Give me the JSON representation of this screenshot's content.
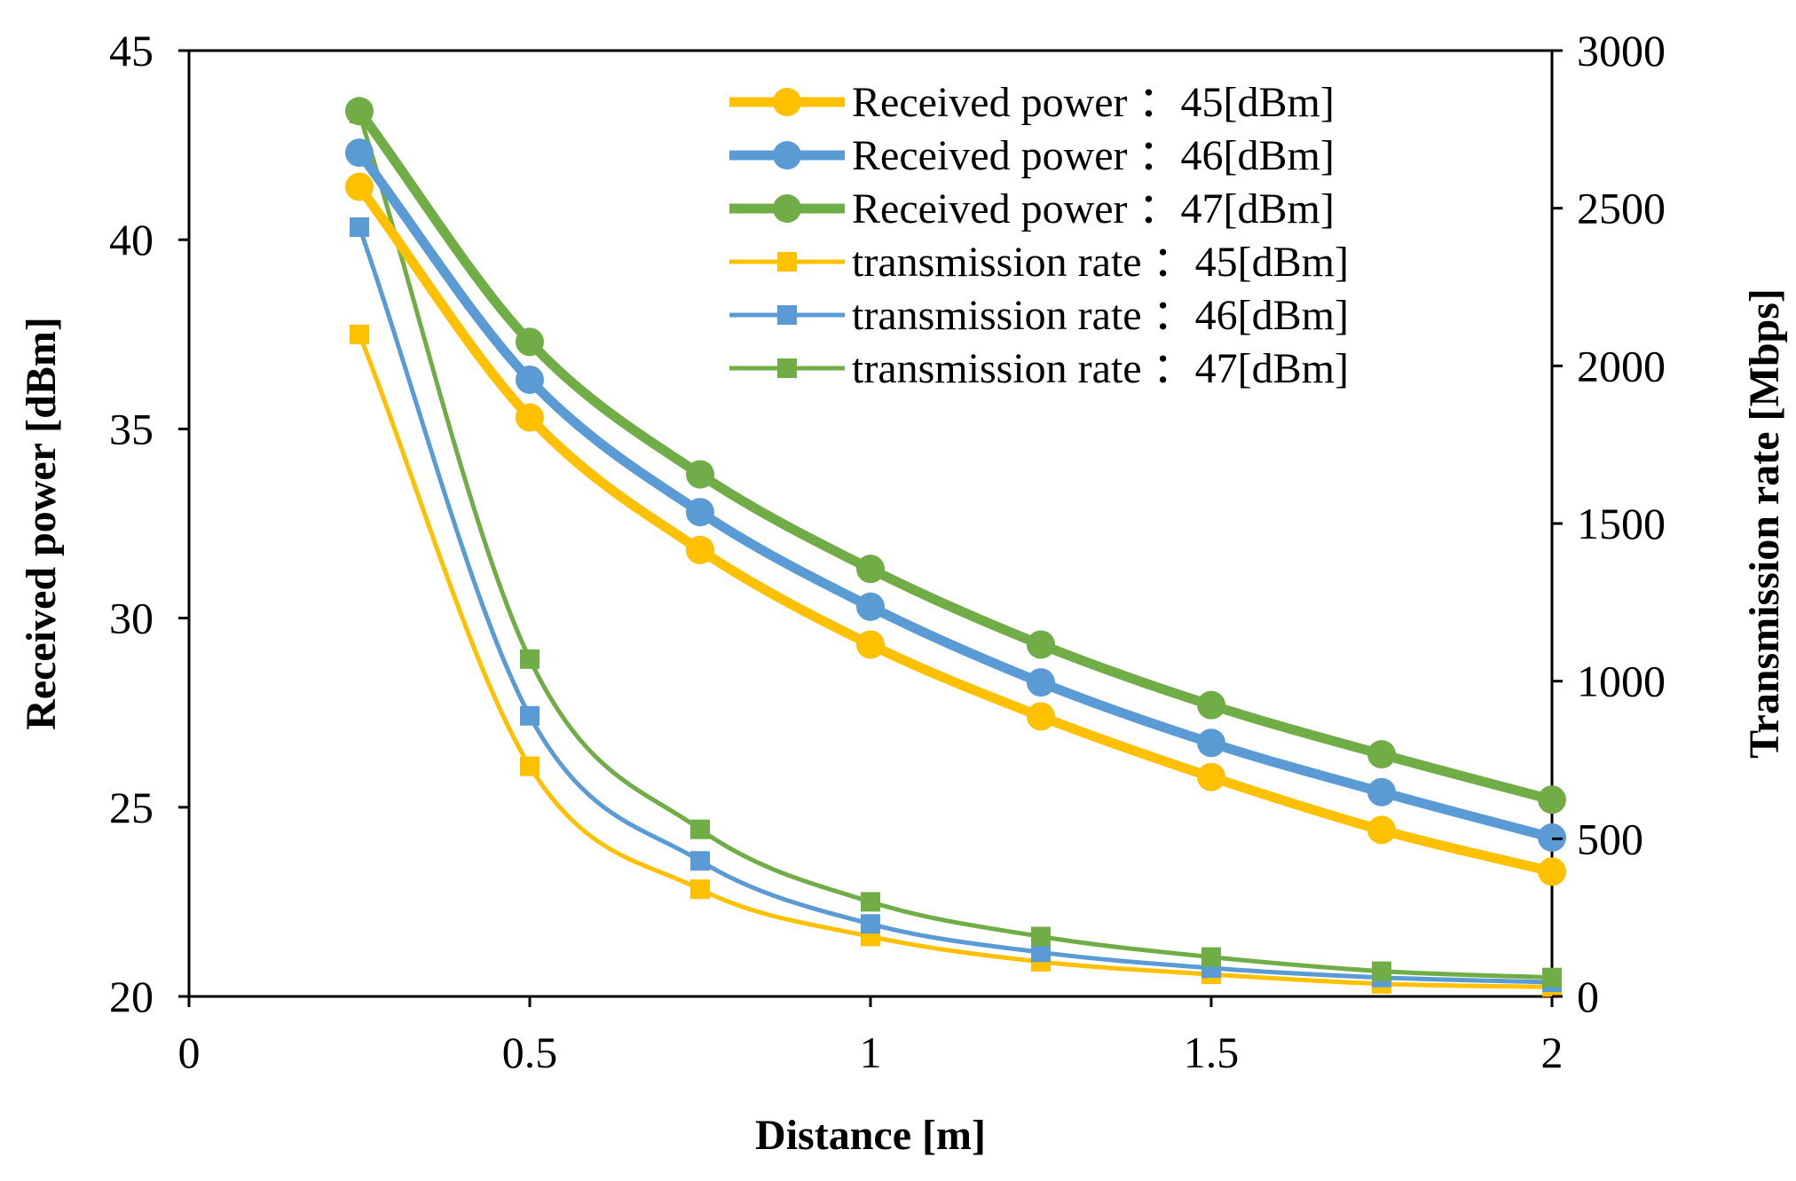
{
  "chart_data": {
    "type": "line",
    "title": "",
    "xlabel": "Distance [m]",
    "ylabel": "Received power [dBm]",
    "y2label": "Transmission rate  [Mbps]",
    "xlim": [
      0,
      2
    ],
    "ylim": [
      20,
      45
    ],
    "y2lim": [
      0,
      3000
    ],
    "x_ticks": [
      "0",
      "0.5",
      "1",
      "1.5",
      "2"
    ],
    "y_ticks": [
      "20",
      "25",
      "30",
      "35",
      "40",
      "45"
    ],
    "y2_ticks": [
      "0",
      "500",
      "1000",
      "1500",
      "2000",
      "2500",
      "3000"
    ],
    "grid": false,
    "legend_position": "top-right",
    "x": [
      0.25,
      0.5,
      0.75,
      1.0,
      1.25,
      1.5,
      1.75,
      2.0
    ],
    "series": [
      {
        "name": "Received power  ：45[dBm]",
        "axis": "left",
        "marker": "circle",
        "color": "#FFC000",
        "values": [
          41.4,
          35.3,
          31.8,
          29.3,
          27.4,
          25.8,
          24.4,
          23.3
        ]
      },
      {
        "name": "Received power  ：46[dBm]",
        "axis": "left",
        "marker": "circle",
        "color": "#5B9BD5",
        "values": [
          42.3,
          36.3,
          32.8,
          30.3,
          28.3,
          26.7,
          25.4,
          24.2
        ]
      },
      {
        "name": "Received power  ：47[dBm]",
        "axis": "left",
        "marker": "circle",
        "color": "#70AD47",
        "values": [
          43.4,
          37.3,
          33.8,
          31.3,
          29.3,
          27.7,
          26.4,
          25.2
        ]
      },
      {
        "name": "transmission rate  ：45[dBm]",
        "axis": "right",
        "marker": "square",
        "color": "#FFC000",
        "values": [
          2100,
          730,
          340,
          190,
          110,
          70,
          40,
          30
        ]
      },
      {
        "name": "transmission rate  ：46[dBm]",
        "axis": "right",
        "marker": "square",
        "color": "#5B9BD5",
        "values": [
          2440,
          890,
          430,
          230,
          140,
          90,
          60,
          45
        ]
      },
      {
        "name": "transmission rate  ：47[dBm]",
        "axis": "right",
        "marker": "square",
        "color": "#70AD47",
        "values": [
          2800,
          1070,
          530,
          300,
          190,
          125,
          80,
          60
        ]
      }
    ]
  }
}
